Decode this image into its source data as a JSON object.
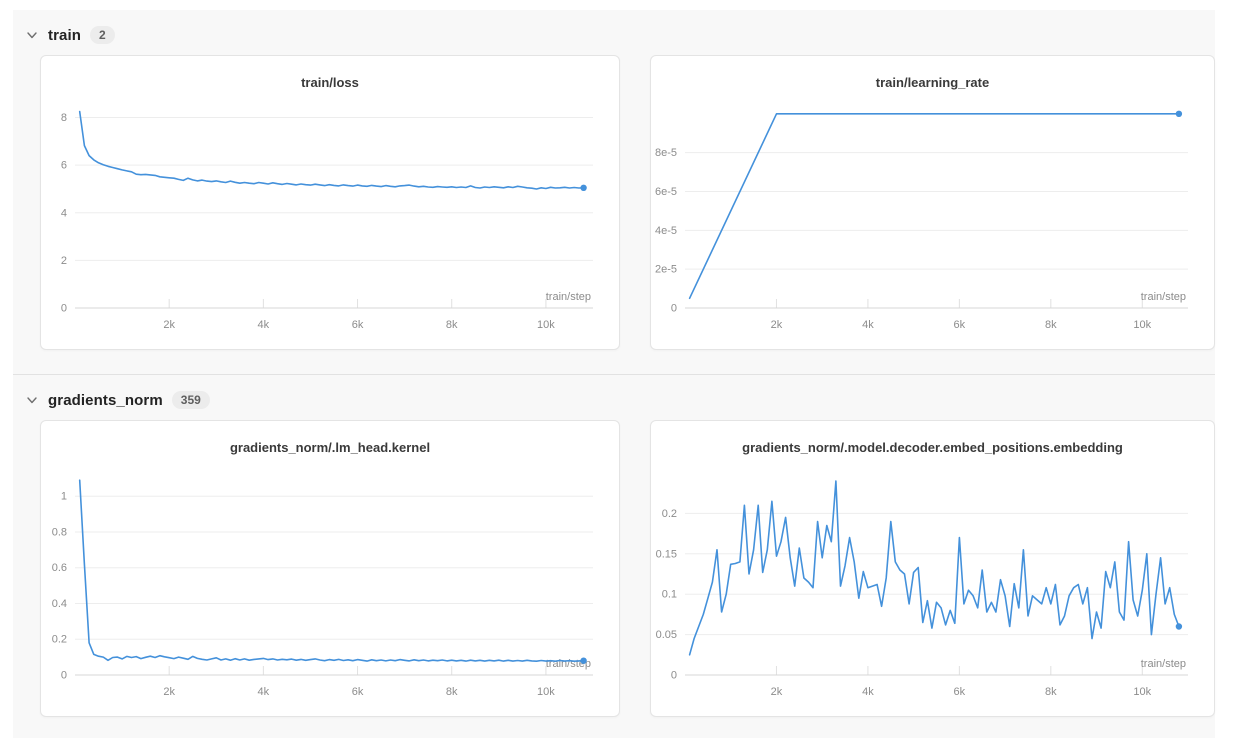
{
  "colors": {
    "line": "#4491db",
    "grid": "#ededed",
    "tickmark": "#e0e0e0",
    "axis": "#d7d7d7",
    "tick_text": "#8c8c8c",
    "title_text": "#3a3a3a",
    "panel_bg": "#f8f8f8",
    "card_bg": "#ffffff",
    "card_border": "#e4e4e4",
    "badge_bg": "#ececec",
    "divider": "#e2e2e2"
  },
  "sections": [
    {
      "name": "train",
      "count": "2",
      "charts": [
        {
          "type": "line",
          "title": "train/loss",
          "xlabel": "train/step",
          "x_range": [
            0,
            11000
          ],
          "y_range": [
            0,
            8.4
          ],
          "x_ticks": [
            2000,
            4000,
            6000,
            8000,
            10000
          ],
          "x_tick_labels": [
            "2k",
            "4k",
            "6k",
            "8k",
            "10k"
          ],
          "y_ticks": [
            0,
            2,
            4,
            6,
            8
          ],
          "y_tick_labels": [
            "0",
            "2",
            "4",
            "6",
            "8"
          ],
          "x_start": 100,
          "x_step_interval": 100,
          "end_dot": true,
          "y": [
            8.25,
            6.82,
            6.4,
            6.22,
            6.1,
            6.02,
            5.95,
            5.9,
            5.85,
            5.8,
            5.76,
            5.72,
            5.62,
            5.6,
            5.61,
            5.59,
            5.57,
            5.51,
            5.49,
            5.47,
            5.45,
            5.4,
            5.36,
            5.45,
            5.38,
            5.34,
            5.37,
            5.33,
            5.31,
            5.34,
            5.3,
            5.27,
            5.33,
            5.28,
            5.24,
            5.27,
            5.24,
            5.22,
            5.27,
            5.24,
            5.21,
            5.26,
            5.22,
            5.19,
            5.23,
            5.2,
            5.17,
            5.21,
            5.18,
            5.16,
            5.2,
            5.17,
            5.14,
            5.18,
            5.15,
            5.13,
            5.17,
            5.14,
            5.12,
            5.16,
            5.13,
            5.11,
            5.15,
            5.12,
            5.1,
            5.14,
            5.11,
            5.09,
            5.13,
            5.14,
            5.16,
            5.12,
            5.09,
            5.11,
            5.08,
            5.07,
            5.1,
            5.08,
            5.07,
            5.09,
            5.06,
            5.08,
            5.06,
            5.13,
            5.06,
            5.04,
            5.08,
            5.06,
            5.09,
            5.07,
            5.05,
            5.09,
            5.06,
            5.11,
            5.08,
            5.05,
            5.03,
            5.0,
            5.05,
            5.02,
            5.07,
            5.04,
            5.05,
            5.07,
            5.04,
            5.06,
            5.04,
            5.05
          ]
        },
        {
          "type": "line",
          "title": "train/learning_rate",
          "xlabel": "train/step",
          "x_range": [
            0,
            11000
          ],
          "y_range": [
            0,
            0.000103
          ],
          "x_ticks": [
            2000,
            4000,
            6000,
            8000,
            10000
          ],
          "x_tick_labels": [
            "2k",
            "4k",
            "6k",
            "8k",
            "10k"
          ],
          "y_ticks": [
            0,
            2e-05,
            4e-05,
            6e-05,
            8e-05
          ],
          "y_tick_labels": [
            "0",
            "2e-5",
            "4e-5",
            "6e-5",
            "8e-5"
          ],
          "end_dot": true,
          "x": [
            100,
            2000,
            10800
          ],
          "y": [
            5e-06,
            0.0001,
            0.0001
          ]
        }
      ]
    },
    {
      "name": "gradients_norm",
      "count": "359",
      "charts": [
        {
          "type": "line",
          "title": "gradients_norm/.lm_head.kernel",
          "xlabel": "train/step",
          "x_range": [
            0,
            11000
          ],
          "y_range": [
            0,
            1.13
          ],
          "x_ticks": [
            2000,
            4000,
            6000,
            8000,
            10000
          ],
          "x_tick_labels": [
            "2k",
            "4k",
            "6k",
            "8k",
            "10k"
          ],
          "y_ticks": [
            0,
            0.2,
            0.4,
            0.6,
            0.8,
            1
          ],
          "y_tick_labels": [
            "0",
            "0.2",
            "0.4",
            "0.6",
            "0.8",
            "1"
          ],
          "x_start": 100,
          "x_step_interval": 100,
          "end_dot": true,
          "y": [
            1.09,
            0.62,
            0.18,
            0.115,
            0.105,
            0.1,
            0.082,
            0.098,
            0.1,
            0.09,
            0.104,
            0.098,
            0.103,
            0.092,
            0.099,
            0.105,
            0.098,
            0.108,
            0.102,
            0.097,
            0.092,
            0.1,
            0.094,
            0.088,
            0.104,
            0.093,
            0.088,
            0.084,
            0.09,
            0.096,
            0.084,
            0.09,
            0.083,
            0.091,
            0.084,
            0.09,
            0.083,
            0.087,
            0.09,
            0.093,
            0.086,
            0.09,
            0.084,
            0.088,
            0.085,
            0.089,
            0.083,
            0.087,
            0.082,
            0.086,
            0.09,
            0.084,
            0.08,
            0.086,
            0.082,
            0.087,
            0.081,
            0.085,
            0.08,
            0.086,
            0.082,
            0.078,
            0.085,
            0.08,
            0.084,
            0.079,
            0.084,
            0.08,
            0.086,
            0.082,
            0.079,
            0.085,
            0.08,
            0.084,
            0.079,
            0.083,
            0.08,
            0.084,
            0.079,
            0.083,
            0.079,
            0.082,
            0.078,
            0.083,
            0.079,
            0.082,
            0.078,
            0.082,
            0.079,
            0.083,
            0.078,
            0.082,
            0.078,
            0.081,
            0.078,
            0.082,
            0.079,
            0.077,
            0.081,
            0.078,
            0.08,
            0.077,
            0.081,
            0.078,
            0.08,
            0.077,
            0.079,
            0.08
          ]
        },
        {
          "type": "line",
          "title": "gradients_norm/.model.decoder.embed_positions.embedding",
          "xlabel": "train/step",
          "x_range": [
            0,
            11000
          ],
          "y_range": [
            0,
            0.25
          ],
          "x_ticks": [
            2000,
            4000,
            6000,
            8000,
            10000
          ],
          "x_tick_labels": [
            "2k",
            "4k",
            "6k",
            "8k",
            "10k"
          ],
          "y_ticks": [
            0,
            0.05,
            0.1,
            0.15,
            0.2
          ],
          "y_tick_labels": [
            "0",
            "0.05",
            "0.1",
            "0.15",
            "0.2"
          ],
          "x_start": 100,
          "x_step_interval": 100,
          "end_dot": true,
          "y": [
            0.025,
            0.045,
            0.06,
            0.075,
            0.095,
            0.115,
            0.155,
            0.078,
            0.1,
            0.137,
            0.138,
            0.14,
            0.21,
            0.125,
            0.155,
            0.21,
            0.127,
            0.155,
            0.215,
            0.147,
            0.165,
            0.195,
            0.145,
            0.11,
            0.157,
            0.12,
            0.115,
            0.108,
            0.19,
            0.145,
            0.185,
            0.165,
            0.24,
            0.11,
            0.135,
            0.17,
            0.14,
            0.095,
            0.128,
            0.108,
            0.11,
            0.112,
            0.085,
            0.12,
            0.19,
            0.14,
            0.13,
            0.125,
            0.088,
            0.127,
            0.133,
            0.065,
            0.092,
            0.058,
            0.09,
            0.083,
            0.062,
            0.08,
            0.064,
            0.17,
            0.088,
            0.105,
            0.098,
            0.083,
            0.13,
            0.078,
            0.09,
            0.078,
            0.118,
            0.098,
            0.06,
            0.113,
            0.083,
            0.155,
            0.073,
            0.098,
            0.093,
            0.088,
            0.108,
            0.088,
            0.112,
            0.062,
            0.073,
            0.098,
            0.108,
            0.112,
            0.088,
            0.108,
            0.045,
            0.078,
            0.058,
            0.128,
            0.108,
            0.14,
            0.078,
            0.068,
            0.165,
            0.093,
            0.073,
            0.105,
            0.15,
            0.05,
            0.1,
            0.145,
            0.088,
            0.108,
            0.075,
            0.06
          ]
        }
      ]
    }
  ]
}
